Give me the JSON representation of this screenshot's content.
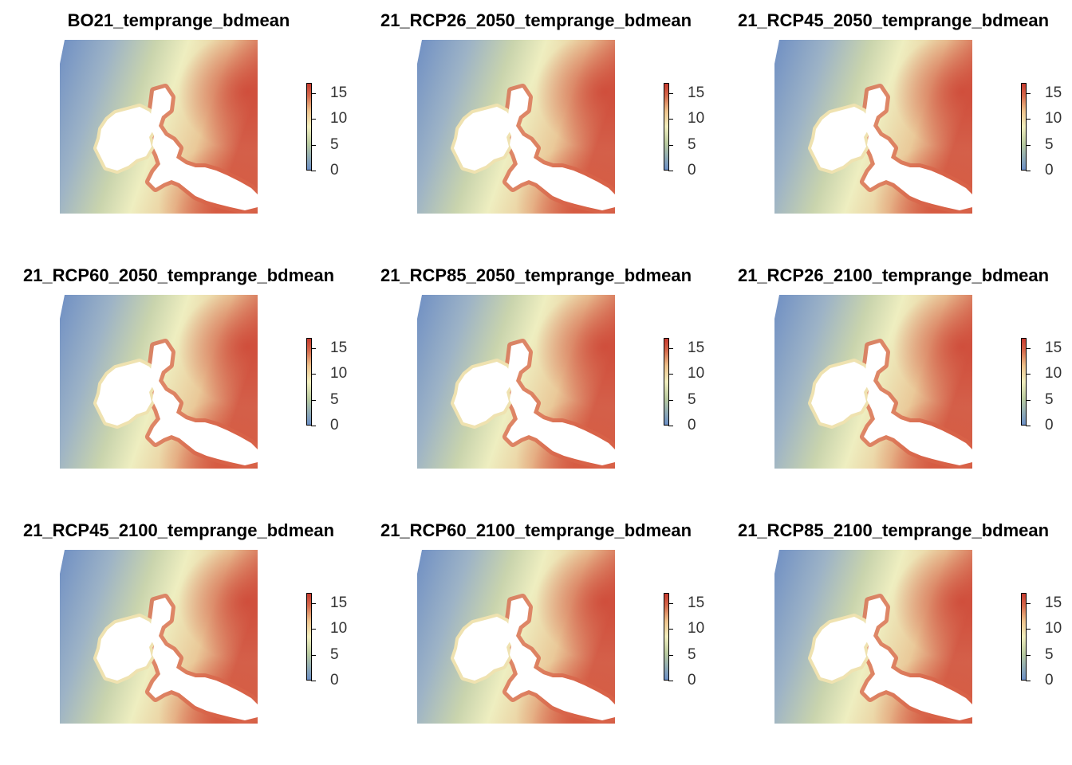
{
  "figure": {
    "panels": [
      {
        "title": "BO21_temprange_bdmean"
      },
      {
        "title": "21_RCP26_2050_temprange_bdmean"
      },
      {
        "title": "21_RCP45_2050_temprange_bdmean"
      },
      {
        "title": "21_RCP60_2050_temprange_bdmean"
      },
      {
        "title": "21_RCP85_2050_temprange_bdmean"
      },
      {
        "title": "21_RCP26_2100_temprange_bdmean"
      },
      {
        "title": "21_RCP45_2100_temprange_bdmean"
      },
      {
        "title": "21_RCP60_2100_temprange_bdmean"
      },
      {
        "title": "21_RCP85_2100_temprange_bdmean"
      }
    ],
    "legend": {
      "ticks": [
        "15",
        "10",
        "5",
        "0"
      ],
      "range": [
        0,
        17
      ],
      "palette": [
        "#6b8fc7",
        "#b9cba0",
        "#f2efbf",
        "#efc48d",
        "#d56a4c",
        "#c73a2e"
      ]
    }
  }
}
